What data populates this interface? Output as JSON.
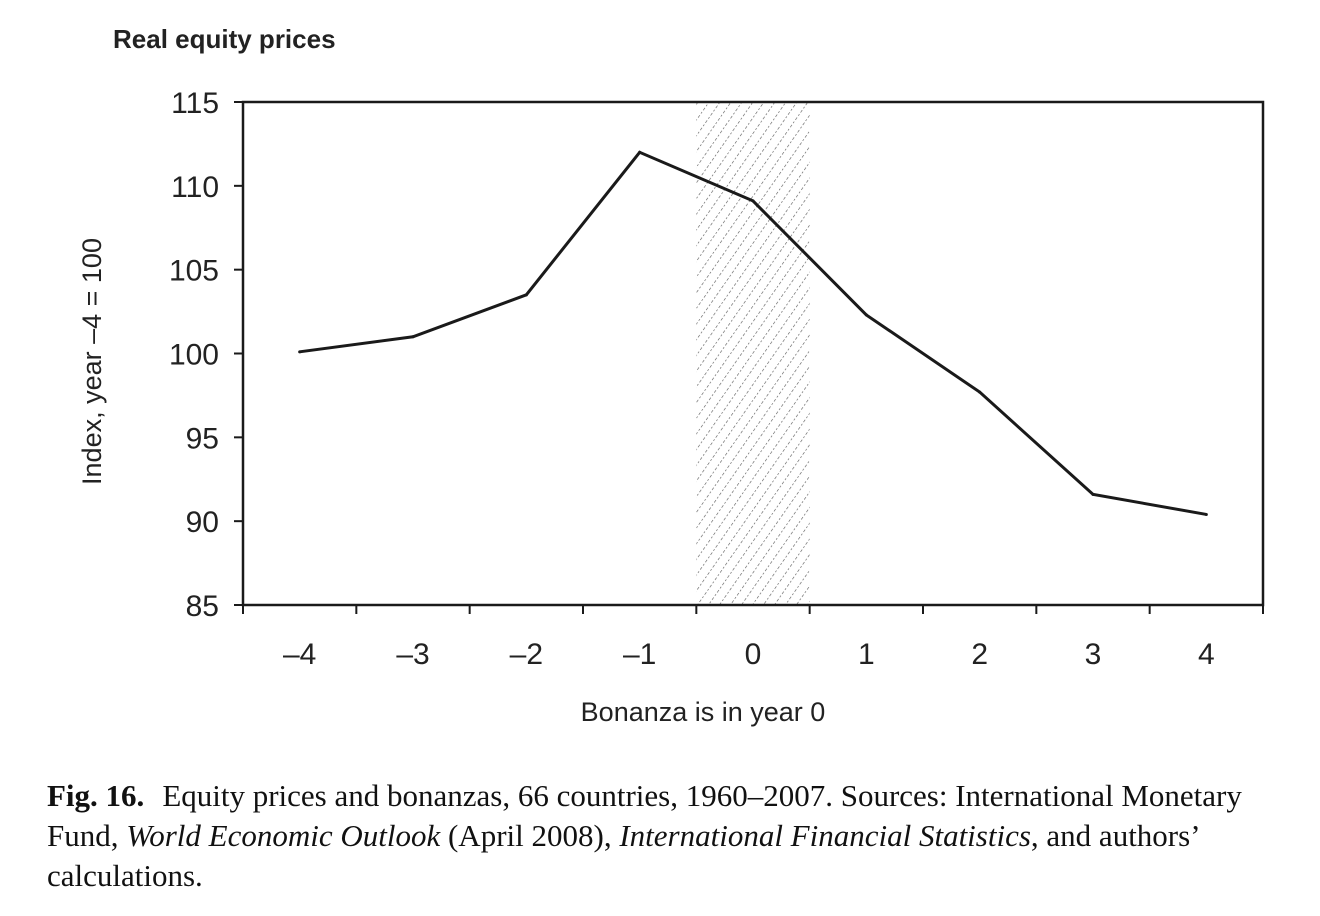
{
  "chart_data": {
    "type": "line",
    "title": "Real equity prices",
    "xlabel": "Bonanza is in year 0",
    "ylabel": "Index, year –4 = 100",
    "x": [
      -4,
      -3,
      -2,
      -1,
      0,
      1,
      2,
      3,
      4
    ],
    "x_tick_labels": [
      "–4",
      "–3",
      "–2",
      "–1",
      "0",
      "1",
      "2",
      "3",
      "4"
    ],
    "y_ticks": [
      85,
      90,
      95,
      100,
      105,
      110,
      115
    ],
    "y_tick_labels": [
      "85",
      "90",
      "95",
      "100",
      "105",
      "110",
      "115"
    ],
    "ylim": [
      85,
      115
    ],
    "series": [
      {
        "values": [
          100.1,
          101.0,
          103.5,
          112.0,
          109.1,
          102.3,
          97.7,
          91.6,
          90.4
        ]
      }
    ],
    "shaded_region": {
      "x_from": -0.5,
      "x_to": 0.5,
      "pattern": "diagonal-hatch"
    },
    "grid": false,
    "line_color": "#1a1a1a"
  },
  "caption": {
    "label": "Fig. 16.",
    "part1": "Equity prices and bonanzas, 66 countries, 1960–2007. Sources: International Monetary Fund, ",
    "italic1": "World Economic Outlook",
    "part2": " (April 2008), ",
    "italic2": "International Financial Statistics",
    "part3": ", and authors’ calculations."
  }
}
